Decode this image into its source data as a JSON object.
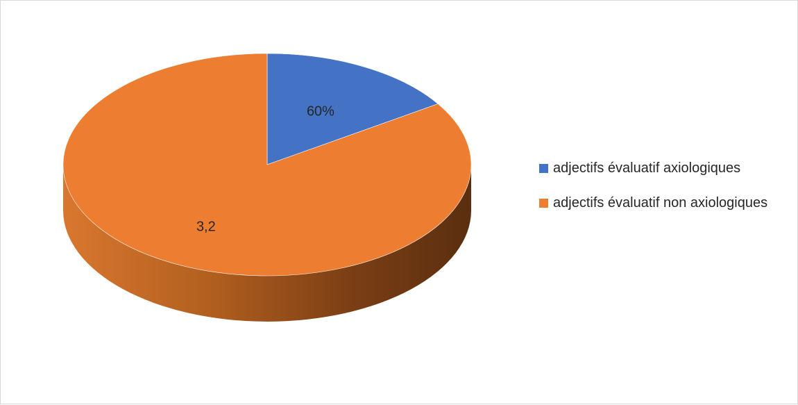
{
  "chart_data": {
    "type": "pie",
    "title": "",
    "series": [
      {
        "name": "",
        "categories": [
          "adjectifs évaluatif axiologiques",
          "adjectifs évaluatif non axiologiques"
        ],
        "values": [
          0.6,
          3.2
        ],
        "data_labels": [
          "60%",
          "3,2"
        ],
        "colors": [
          "#4472C4",
          "#ED7D31"
        ]
      }
    ],
    "legend": {
      "position": "right",
      "entries": [
        "adjectifs évaluatif axiologiques",
        "adjectifs évaluatif non axiologiques"
      ]
    },
    "style": "3d-pie"
  }
}
